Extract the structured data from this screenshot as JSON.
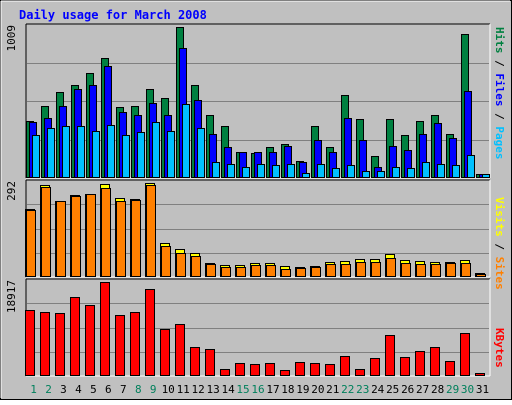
{
  "title": "Daily usage for March 2008",
  "colors": {
    "title": "#0000ff",
    "hits": "#008040",
    "files": "#0000ff",
    "pages": "#00c0ff",
    "visits": "#ffff00",
    "sites": "#ff8000",
    "kbytes": "#ff0000",
    "weekend_day": "#00805c",
    "weekday_day": "#000000",
    "plot_bg": "#c0c0c0",
    "grid": "#808080"
  },
  "legend": {
    "top": [
      "Pages",
      "Files",
      "Hits"
    ],
    "middle": [
      "Sites",
      "Visits"
    ],
    "bottom": [
      "KBytes"
    ],
    "separator": " / "
  },
  "chart_data": [
    {
      "type": "bar",
      "panel": "hits-files-pages",
      "ymax_label": "1009",
      "ylim": [
        0,
        1009
      ],
      "grid": true,
      "categories": [
        "1",
        "2",
        "3",
        "4",
        "5",
        "6",
        "7",
        "8",
        "9",
        "10",
        "11",
        "12",
        "13",
        "14",
        "15",
        "16",
        "17",
        "18",
        "19",
        "20",
        "21",
        "22",
        "23",
        "24",
        "25",
        "26",
        "27",
        "28",
        "29",
        "30",
        "31"
      ],
      "series": [
        {
          "name": "Hits",
          "values": [
            380,
            480,
            570,
            620,
            700,
            800,
            470,
            480,
            590,
            530,
            1009,
            620,
            420,
            340,
            170,
            160,
            200,
            220,
            110,
            340,
            200,
            550,
            390,
            140,
            390,
            280,
            380,
            420,
            290,
            960,
            20
          ]
        },
        {
          "name": "Files",
          "values": [
            370,
            400,
            480,
            590,
            620,
            750,
            440,
            420,
            500,
            420,
            870,
            520,
            290,
            200,
            170,
            170,
            170,
            210,
            100,
            250,
            170,
            400,
            250,
            70,
            210,
            180,
            290,
            360,
            260,
            580,
            20
          ]
        },
        {
          "name": "Pages",
          "values": [
            280,
            330,
            340,
            340,
            310,
            350,
            280,
            300,
            370,
            310,
            490,
            330,
            100,
            90,
            70,
            90,
            80,
            90,
            30,
            90,
            60,
            80,
            40,
            40,
            70,
            60,
            100,
            90,
            80,
            150,
            20
          ]
        }
      ]
    },
    {
      "type": "bar",
      "panel": "visits-sites",
      "ymax_label": "292",
      "ylim": [
        0,
        292
      ],
      "grid": true,
      "categories": [
        "1",
        "2",
        "3",
        "4",
        "5",
        "6",
        "7",
        "8",
        "9",
        "10",
        "11",
        "12",
        "13",
        "14",
        "15",
        "16",
        "17",
        "18",
        "19",
        "20",
        "21",
        "22",
        "23",
        "24",
        "25",
        "26",
        "27",
        "28",
        "29",
        "30",
        "31"
      ],
      "series": [
        {
          "name": "Visits",
          "values": [
            211,
            285,
            237,
            255,
            259,
            290,
            246,
            242,
            292,
            103,
            84,
            73,
            42,
            34,
            35,
            40,
            41,
            31,
            29,
            31,
            44,
            48,
            52,
            53,
            68,
            50,
            46,
            45,
            45,
            49,
            10
          ]
        },
        {
          "name": "Sites",
          "values": [
            208,
            280,
            234,
            250,
            256,
            276,
            236,
            238,
            285,
            94,
            73,
            62,
            37,
            28,
            28,
            33,
            36,
            23,
            25,
            28,
            37,
            39,
            44,
            43,
            55,
            40,
            39,
            39,
            40,
            41,
            7
          ]
        }
      ]
    },
    {
      "type": "bar",
      "panel": "kbytes",
      "ymax_label": "18917",
      "ylim": [
        0,
        18917
      ],
      "grid": true,
      "categories": [
        "1",
        "2",
        "3",
        "4",
        "5",
        "6",
        "7",
        "8",
        "9",
        "10",
        "11",
        "12",
        "13",
        "14",
        "15",
        "16",
        "17",
        "18",
        "19",
        "20",
        "21",
        "22",
        "23",
        "24",
        "25",
        "26",
        "27",
        "28",
        "29",
        "30",
        "31"
      ],
      "series": [
        {
          "name": "KBytes",
          "values": [
            13200,
            12900,
            12600,
            15800,
            14300,
            18917,
            12300,
            12800,
            17500,
            9300,
            10400,
            5700,
            5200,
            1200,
            2500,
            2200,
            2400,
            1000,
            2700,
            2500,
            2300,
            3900,
            1300,
            3400,
            8100,
            3600,
            4800,
            5600,
            2900,
            8600,
            200
          ]
        }
      ]
    }
  ]
}
